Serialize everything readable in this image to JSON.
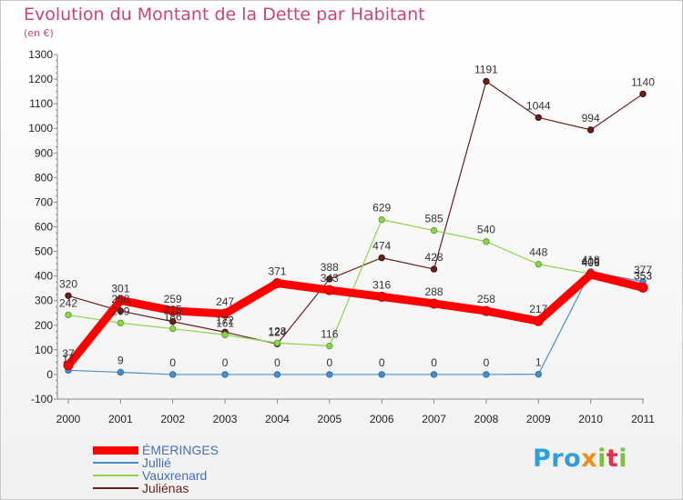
{
  "header": {
    "title": "Evolution du Montant de la Dette par Habitant",
    "unit": "(en €)"
  },
  "logo": {
    "text": "Proxiti",
    "name": "proxiti-logo"
  },
  "chart_data": {
    "type": "line",
    "title": "Evolution du Montant de la Dette par Habitant",
    "subtitle": "(en €)",
    "xlabel": "",
    "ylabel": "",
    "categories": [
      "2000",
      "2001",
      "2002",
      "2003",
      "2004",
      "2005",
      "2006",
      "2007",
      "2008",
      "2009",
      "2010",
      "2011"
    ],
    "ylim": [
      -100,
      1300
    ],
    "yticks": [
      -100,
      0,
      100,
      200,
      300,
      400,
      500,
      600,
      700,
      800,
      900,
      1000,
      1100,
      1200,
      1300
    ],
    "grid": false,
    "legend_position": "bottom-left",
    "series": [
      {
        "name": "ÉMERINGES",
        "color": "#ff0000",
        "values": [
          37,
          301,
          259,
          247,
          371,
          343,
          316,
          288,
          258,
          217,
          406,
          353
        ],
        "labels": [
          [
            0,
            "37"
          ],
          [
            1,
            "301"
          ],
          [
            2,
            "259"
          ],
          [
            3,
            "247"
          ],
          [
            4,
            "371"
          ],
          [
            5,
            "343"
          ],
          [
            6,
            "316"
          ],
          [
            7,
            "288"
          ],
          [
            8,
            "258"
          ],
          [
            9,
            "217"
          ],
          [
            10,
            "406"
          ],
          [
            11,
            "353"
          ]
        ]
      },
      {
        "name": "Jullié",
        "color": "#4a90c8",
        "values": [
          17,
          9,
          0,
          0,
          0,
          0,
          0,
          0,
          0,
          1,
          418,
          377
        ],
        "labels": [
          [
            0,
            "17"
          ],
          [
            1,
            "9"
          ],
          [
            2,
            "0"
          ],
          [
            3,
            "0"
          ],
          [
            4,
            "0"
          ],
          [
            5,
            "0"
          ],
          [
            6,
            "0"
          ],
          [
            7,
            "0"
          ],
          [
            8,
            "0"
          ],
          [
            9,
            "1"
          ],
          [
            10,
            "418"
          ],
          [
            11,
            "377"
          ]
        ]
      },
      {
        "name": "Vauxrenard",
        "color": "#8fd44a",
        "values": [
          242,
          209,
          186,
          161,
          128,
          116,
          629,
          585,
          540,
          448,
          409,
          353
        ],
        "labels": [
          [
            0,
            "242"
          ],
          [
            1,
            "209"
          ],
          [
            2,
            "186"
          ],
          [
            3,
            "161"
          ],
          [
            4,
            "128"
          ],
          [
            5,
            "116"
          ],
          [
            6,
            "629"
          ],
          [
            7,
            "585"
          ],
          [
            8,
            "540"
          ],
          [
            9,
            "448"
          ],
          [
            10,
            "409"
          ],
          [
            11,
            "353"
          ]
        ]
      },
      {
        "name": "Juliénas",
        "color": "#6b1e1e",
        "values": [
          320,
          258,
          215,
          172,
          124,
          388,
          474,
          428,
          1191,
          1044,
          994,
          1140
        ],
        "labels": [
          [
            0,
            "320"
          ],
          [
            1,
            "258"
          ],
          [
            2,
            "215"
          ],
          [
            3,
            "172"
          ],
          [
            4,
            "124"
          ],
          [
            5,
            "388"
          ],
          [
            6,
            "474"
          ],
          [
            7,
            "428"
          ],
          [
            8,
            "1191"
          ],
          [
            9,
            "1044"
          ],
          [
            10,
            "994"
          ],
          [
            11,
            "1140"
          ]
        ]
      }
    ]
  }
}
